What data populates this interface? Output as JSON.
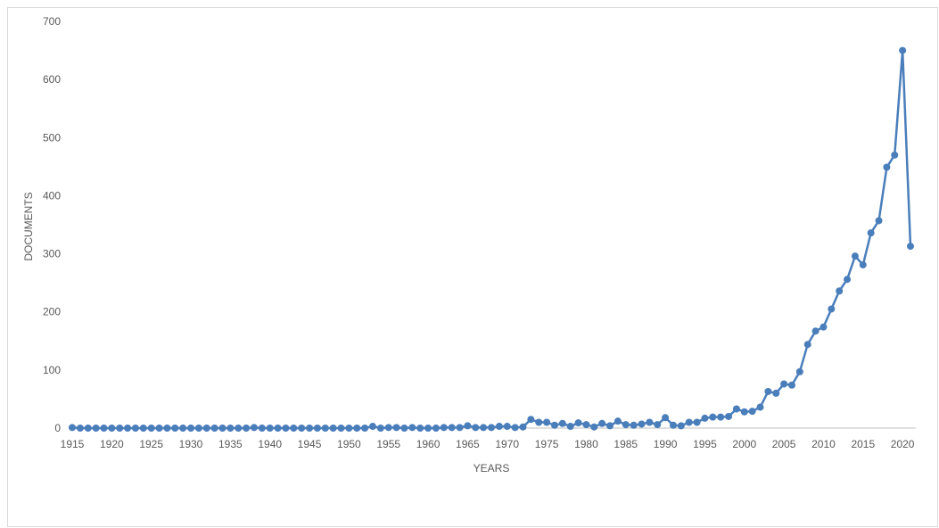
{
  "chart_data": {
    "type": "line",
    "title": "",
    "xlabel": "YEARS",
    "ylabel": "DOCUMENTS",
    "xlim": [
      1915,
      2021
    ],
    "ylim": [
      0,
      700
    ],
    "yticks": [
      0,
      100,
      200,
      300,
      400,
      500,
      600,
      700
    ],
    "xticks": [
      1915,
      1920,
      1925,
      1930,
      1935,
      1940,
      1945,
      1950,
      1955,
      1960,
      1965,
      1970,
      1975,
      1980,
      1985,
      1990,
      1995,
      2000,
      2005,
      2010,
      2015,
      2020
    ],
    "grid": false,
    "legend": "none",
    "color": "#4a7ebb",
    "series": [
      {
        "x": [
          1915,
          1916,
          1917,
          1918,
          1919,
          1920,
          1921,
          1922,
          1923,
          1924,
          1925,
          1926,
          1927,
          1928,
          1929,
          1930,
          1931,
          1932,
          1933,
          1934,
          1935,
          1936,
          1937,
          1938,
          1939,
          1940,
          1941,
          1942,
          1943,
          1944,
          1945,
          1946,
          1947,
          1948,
          1949,
          1950,
          1951,
          1952,
          1953,
          1954,
          1955,
          1956,
          1957,
          1958,
          1959,
          1960,
          1961,
          1962,
          1963,
          1964,
          1965,
          1966,
          1967,
          1968,
          1969,
          1970,
          1971,
          1972,
          1973,
          1974,
          1975,
          1976,
          1977,
          1978,
          1979,
          1980,
          1981,
          1982,
          1983,
          1984,
          1985,
          1986,
          1987,
          1988,
          1989,
          1990,
          1991,
          1992,
          1993,
          1994,
          1995,
          1996,
          1997,
          1998,
          1999,
          2000,
          2001,
          2002,
          2003,
          2004,
          2005,
          2006,
          2007,
          2008,
          2009,
          2010,
          2011,
          2012,
          2013,
          2014,
          2015,
          2016,
          2017,
          2018,
          2019,
          2020,
          2021
        ],
        "values": [
          1,
          0,
          0,
          0,
          0,
          0,
          0,
          0,
          0,
          0,
          0,
          0,
          0,
          0,
          0,
          0,
          0,
          0,
          0,
          0,
          0,
          0,
          0,
          1,
          0,
          0,
          0,
          0,
          0,
          0,
          0,
          0,
          0,
          0,
          0,
          0,
          0,
          0,
          3,
          0,
          1,
          1,
          0,
          1,
          0,
          0,
          0,
          1,
          1,
          1,
          4,
          1,
          1,
          1,
          3,
          3,
          1,
          2,
          15,
          10,
          10,
          5,
          8,
          3,
          9,
          6,
          2,
          8,
          4,
          12,
          6,
          5,
          7,
          10,
          6,
          18,
          5,
          4,
          10,
          10,
          17,
          19,
          19,
          20,
          33,
          28,
          29,
          36,
          63,
          60,
          76,
          74,
          97,
          144,
          167,
          174,
          205,
          236,
          256,
          296,
          281,
          336,
          357,
          449,
          470,
          650,
          313
        ]
      }
    ]
  }
}
